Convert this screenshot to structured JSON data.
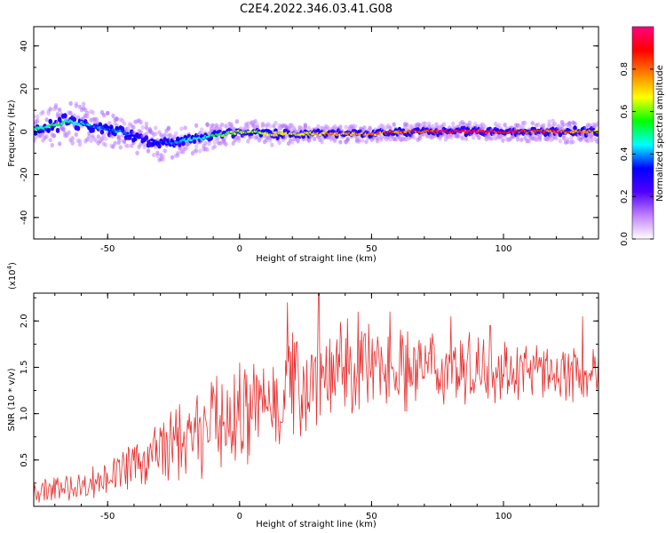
{
  "chart_data": [
    {
      "type": "heatmap",
      "title": "C2E4.2022.346.03.41.G08",
      "xlabel": "Height of straight line (km)",
      "ylabel": "Frequency (Hz)",
      "xlim": [
        -78,
        136
      ],
      "ylim": [
        -50,
        49
      ],
      "xticks": [
        -50,
        0,
        50,
        100
      ],
      "xtick_labels": [
        "-50",
        "0",
        "50",
        "100"
      ],
      "yticks": [
        -40,
        -20,
        0,
        20,
        40
      ],
      "ytick_labels": [
        "-40",
        "-20",
        "0",
        "20",
        "40"
      ],
      "colorbar": {
        "label": "Normalized spectral amplitude",
        "range": [
          0,
          1
        ],
        "ticks": [
          0,
          0.2,
          0.4,
          0.6,
          0.8
        ],
        "tick_labels": [
          "0.0",
          "0.2",
          "0.4",
          "0.6",
          "0.8"
        ],
        "colors": [
          "#ffffff",
          "#c080ff",
          "#5000ff",
          "#0000ff",
          "#00ffff",
          "#00ff00",
          "#ffff00",
          "#ff8000",
          "#ff0000",
          "#ff0080"
        ]
      },
      "ridge": {
        "x": [
          -78,
          -70,
          -65,
          -60,
          -55,
          -50,
          -45,
          -40,
          -35,
          -30,
          -25,
          -20,
          -15,
          -10,
          -5,
          0,
          5,
          10,
          20,
          30,
          40,
          50,
          60,
          70,
          80,
          90,
          100,
          110,
          120,
          130,
          136
        ],
        "freq": [
          1,
          3,
          5,
          4,
          2,
          1,
          0,
          -2,
          -4,
          -5,
          -5,
          -4,
          -3,
          -2,
          -1,
          0,
          0,
          -1,
          -1,
          -1,
          -1,
          -1,
          0,
          0,
          0,
          0,
          0,
          0,
          0,
          0,
          0
        ],
        "amplitude": [
          0.5,
          0.55,
          0.5,
          0.45,
          0.4,
          0.4,
          0.4,
          0.35,
          0.3,
          0.35,
          0.4,
          0.45,
          0.5,
          0.55,
          0.6,
          0.65,
          0.65,
          0.7,
          0.72,
          0.75,
          0.78,
          0.8,
          0.85,
          0.92,
          0.95,
          0.96,
          0.95,
          0.9,
          0.85,
          0.8,
          0.75
        ],
        "spread": [
          5,
          6,
          6,
          6,
          5,
          5,
          5,
          5,
          5,
          5,
          4,
          4,
          4,
          4,
          3,
          3,
          3,
          3,
          2.5,
          2.5,
          2.5,
          2.5,
          2.5,
          2.5,
          2.5,
          2.5,
          2.5,
          2.5,
          3,
          3,
          3
        ]
      }
    },
    {
      "type": "line",
      "xlabel": "Height of straight line (km)",
      "ylabel": "SNR (10 * v/v)",
      "scale_label": "(x10",
      "scale_exp": "4",
      "scale_close": ")",
      "xlim": [
        -78,
        136
      ],
      "ylim": [
        0,
        2.3
      ],
      "xticks": [
        -50,
        0,
        50,
        100
      ],
      "xtick_labels": [
        "-50",
        "0",
        "50",
        "100"
      ],
      "yticks": [
        0.5,
        1.0,
        1.5,
        2.0
      ],
      "ytick_labels": [
        "0.5",
        "1.0",
        "1.5",
        "2.0"
      ],
      "series": [
        {
          "color": "#e83030",
          "x_start": -78,
          "x_end": 136,
          "trend_x": [
            -78,
            -60,
            -50,
            -40,
            -30,
            -20,
            -10,
            0,
            10,
            20,
            30,
            40,
            50,
            60,
            80,
            100,
            120,
            136
          ],
          "trend_y": [
            0.15,
            0.22,
            0.32,
            0.45,
            0.6,
            0.75,
            0.85,
            0.95,
            1.1,
            1.3,
            1.4,
            1.45,
            1.5,
            1.5,
            1.5,
            1.48,
            1.45,
            1.4
          ],
          "amp_y": [
            0.1,
            0.12,
            0.15,
            0.2,
            0.28,
            0.35,
            0.4,
            0.42,
            0.45,
            0.45,
            0.42,
            0.4,
            0.38,
            0.35,
            0.3,
            0.25,
            0.22,
            0.2
          ],
          "peaks_x": [
            -10,
            0,
            18,
            30,
            45,
            57,
            80,
            95,
            130
          ],
          "peaks_y": [
            1.3,
            1.55,
            2.2,
            2.3,
            2.1,
            2.1,
            2.05,
            1.95,
            2.05
          ],
          "n_points": 640
        }
      ]
    }
  ]
}
